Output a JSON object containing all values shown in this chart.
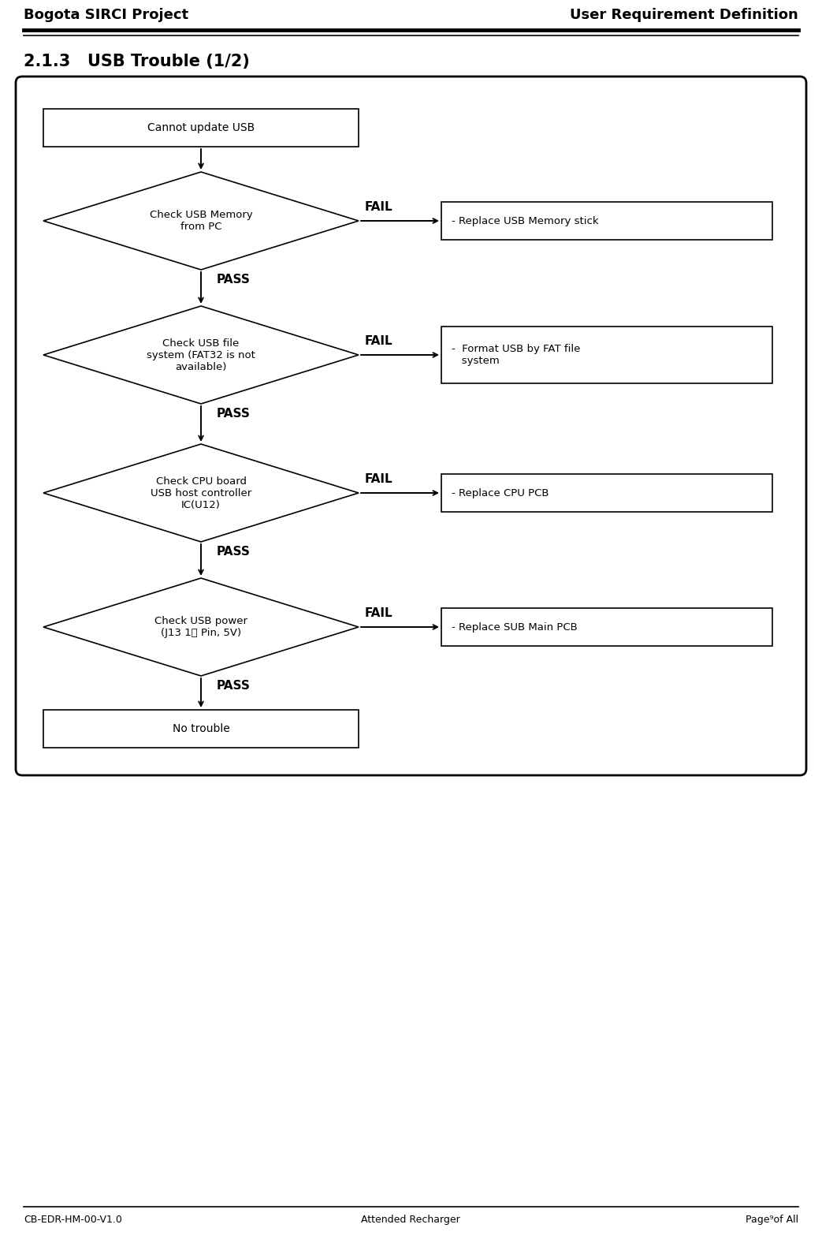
{
  "title_left": "Bogota SIRCI Project",
  "title_right": "User Requirement Definition",
  "section_title": "2.1.3   USB Trouble (1/2)",
  "footer_left": "CB-EDR-HM-00-V1.0",
  "footer_center": "Attended Recharger",
  "footer_right": "Page⁹of All",
  "start_box": "Cannot update USB",
  "diamonds": [
    {
      "label": "Check USB Memory\nfrom PC",
      "fail_label": "- Replace USB Memory stick"
    },
    {
      "label": "Check USB file\nsystem (FAT32 is not\navailable)",
      "fail_label": "-  Format USB by FAT file\n   system"
    },
    {
      "label": "Check CPU board\nUSB host controller\nIC(U12)",
      "fail_label": "- Replace CPU PCB"
    },
    {
      "label": "Check USB power\n(J13 1번 Pin, 5V)",
      "fail_label": "- Replace SUB Main PCB"
    }
  ],
  "end_box": "No trouble",
  "pass_label": "PASS",
  "fail_text": "FAIL",
  "bg_color": "#ffffff",
  "text_color": "#000000",
  "figsize": [
    10.43,
    15.76
  ],
  "dpi": 100
}
